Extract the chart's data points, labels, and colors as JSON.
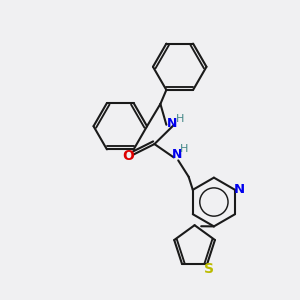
{
  "bg_color": "#f0f0f2",
  "bond_color": "#1a1a1a",
  "N_color": "#0000ee",
  "O_color": "#dd0000",
  "S_color": "#bbbb00",
  "NH_color": "#448888",
  "line_width": 1.5,
  "fig_width": 3.0,
  "fig_height": 3.0,
  "dpi": 100,
  "xlim": [
    0,
    10
  ],
  "ylim": [
    0,
    10
  ]
}
